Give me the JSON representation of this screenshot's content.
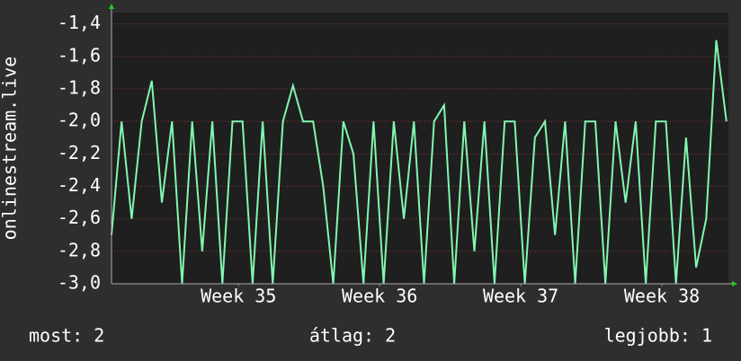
{
  "chart_data": {
    "type": "line",
    "y_label": "onlinestream.live",
    "x": [
      0,
      0.5,
      1,
      1.5,
      2,
      2.5,
      3,
      3.5,
      4,
      4.5,
      5,
      5.5,
      6,
      6.5,
      7,
      7.5,
      8,
      8.5,
      9,
      9.5,
      10,
      10.5,
      11,
      11.5,
      12,
      12.5,
      13,
      13.5,
      14,
      14.5,
      15,
      15.5,
      16,
      16.5,
      17,
      17.5,
      18,
      18.5,
      19,
      19.5,
      20,
      20.5,
      21,
      21.5,
      22,
      22.5,
      23,
      23.5,
      24,
      24.5,
      25,
      25.5,
      26,
      26.5,
      27,
      27.5,
      28,
      28.5,
      29,
      29.5,
      30,
      30.5
    ],
    "series": [
      {
        "color": "#80f7b0",
        "values": [
          -2.7,
          -2.0,
          -2.6,
          -2.0,
          -1.75,
          -2.5,
          -2.0,
          -3.0,
          -2.0,
          -2.8,
          -2.0,
          -3.0,
          -2.0,
          -2.0,
          -3.0,
          -2.0,
          -3.0,
          -2.0,
          -1.78,
          -2.0,
          -2.0,
          -2.4,
          -3.0,
          -2.0,
          -2.2,
          -3.0,
          -2.0,
          -3.0,
          -2.0,
          -2.6,
          -2.0,
          -3.0,
          -2.0,
          -1.9,
          -3.0,
          -2.0,
          -2.8,
          -2.0,
          -3.0,
          -2.0,
          -2.0,
          -3.0,
          -2.1,
          -2.0,
          -2.7,
          -2.0,
          -3.0,
          -2.0,
          -2.0,
          -3.0,
          -2.0,
          -2.5,
          -2.0,
          -3.0,
          -2.0,
          -2.0,
          -3.0,
          -2.1,
          -2.9,
          -2.6,
          -1.5,
          -2.0
        ]
      }
    ],
    "xlim": [
      0,
      30.6
    ],
    "xticks": [
      {
        "value": 6.3,
        "label": "Week 35"
      },
      {
        "value": 13.3,
        "label": "Week 36"
      },
      {
        "value": 20.3,
        "label": "Week 37"
      },
      {
        "value": 27.3,
        "label": "Week 38"
      }
    ],
    "ylim": [
      -3.0,
      -1.33
    ],
    "yticks": [
      {
        "value": -3.0,
        "label": "-3,0"
      },
      {
        "value": -2.8,
        "label": "-2,8"
      },
      {
        "value": -2.6,
        "label": "-2,6"
      },
      {
        "value": -2.4,
        "label": "-2,4"
      },
      {
        "value": -2.2,
        "label": "-2,2"
      },
      {
        "value": -2.0,
        "label": "-2,0"
      },
      {
        "value": -1.8,
        "label": "-1,8"
      },
      {
        "value": -1.6,
        "label": "-1,6"
      },
      {
        "value": -1.4,
        "label": "-1,4"
      }
    ],
    "grid": true,
    "footer": [
      "most: 2",
      "átlag: 2",
      "legjobb: 1"
    ]
  }
}
